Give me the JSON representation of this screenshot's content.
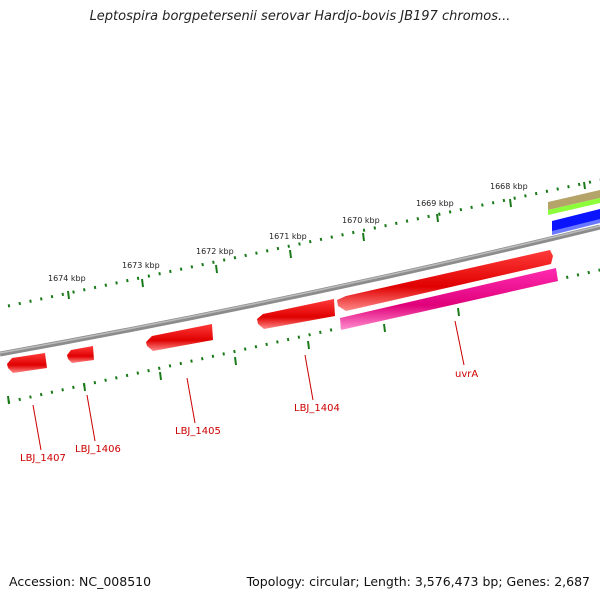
{
  "title": "Leptospira borgpetersenii serovar Hardjo-bovis JB197 chromos...",
  "footer": {
    "accession": "Accession: NC_008510",
    "summary": "Topology: circular; Length: 3,576,473 bp; Genes: 2,687"
  },
  "ruler_labels": [
    "1668 kbp",
    "1669 kbp",
    "1670 kbp",
    "1671 kbp",
    "1672 kbp",
    "1673 kbp",
    "1674 kbp"
  ],
  "genes": [
    "uvrA",
    "LBJ_1404",
    "LBJ_1405",
    "LBJ_1406",
    "LBJ_1407"
  ],
  "colors": {
    "backbone": "#808080",
    "gene": "#ff0000",
    "cds_feature": "#ff1493",
    "ticks": "#1a7a1a",
    "label": "#cc0000"
  }
}
